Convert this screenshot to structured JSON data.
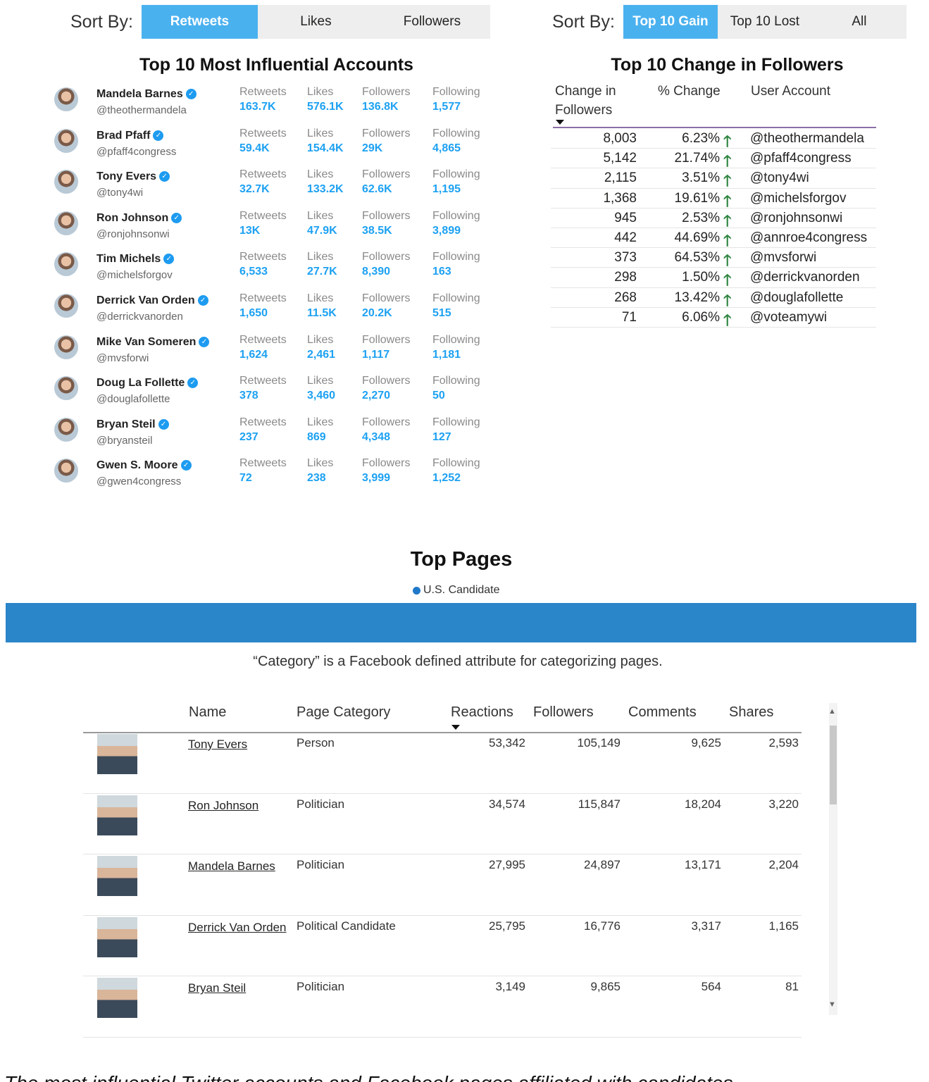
{
  "sort_left": {
    "label": "Sort By:",
    "options": [
      "Retweets",
      "Likes",
      "Followers"
    ],
    "active": 0
  },
  "sort_right": {
    "label": "Sort By:",
    "options": [
      "Top 10 Gain",
      "Top 10 Lost",
      "All"
    ],
    "active": 0
  },
  "influential": {
    "title": "Top 10 Most Influential Accounts",
    "metric_labels": [
      "Retweets",
      "Likes",
      "Followers",
      "Following"
    ],
    "accounts": [
      {
        "name": "Mandela Barnes",
        "handle": "@theothermandela",
        "retweets": "163.7K",
        "likes": "576.1K",
        "followers": "136.8K",
        "following": "1,577"
      },
      {
        "name": "Brad Pfaff",
        "handle": "@pfaff4congress",
        "retweets": "59.4K",
        "likes": "154.4K",
        "followers": "29K",
        "following": "4,865"
      },
      {
        "name": "Tony Evers",
        "handle": "@tony4wi",
        "retweets": "32.7K",
        "likes": "133.2K",
        "followers": "62.6K",
        "following": "1,195"
      },
      {
        "name": "Ron Johnson",
        "handle": "@ronjohnsonwi",
        "retweets": "13K",
        "likes": "47.9K",
        "followers": "38.5K",
        "following": "3,899"
      },
      {
        "name": "Tim Michels",
        "handle": "@michelsforgov",
        "retweets": "6,533",
        "likes": "27.7K",
        "followers": "8,390",
        "following": "163"
      },
      {
        "name": "Derrick Van Orden",
        "handle": "@derrickvanorden",
        "retweets": "1,650",
        "likes": "11.5K",
        "followers": "20.2K",
        "following": "515"
      },
      {
        "name": "Mike Van Someren",
        "handle": "@mvsforwi",
        "retweets": "1,624",
        "likes": "2,461",
        "followers": "1,117",
        "following": "1,181"
      },
      {
        "name": "Doug La Follette",
        "handle": "@douglafollette",
        "retweets": "378",
        "likes": "3,460",
        "followers": "2,270",
        "following": "50"
      },
      {
        "name": "Bryan Steil",
        "handle": "@bryansteil",
        "retweets": "237",
        "likes": "869",
        "followers": "4,348",
        "following": "127"
      },
      {
        "name": "Gwen S. Moore",
        "handle": "@gwen4congress",
        "retweets": "72",
        "likes": "238",
        "followers": "3,999",
        "following": "1,252"
      }
    ]
  },
  "change": {
    "title": "Top 10 Change in Followers",
    "headers": [
      "Change in Followers",
      "% Change",
      "User Account"
    ],
    "rows": [
      {
        "change": "8,003",
        "pct": "6.23%",
        "account": "@theothermandela"
      },
      {
        "change": "5,142",
        "pct": "21.74%",
        "account": "@pfaff4congress"
      },
      {
        "change": "2,115",
        "pct": "3.51%",
        "account": "@tony4wi"
      },
      {
        "change": "1,368",
        "pct": "19.61%",
        "account": "@michelsforgov"
      },
      {
        "change": "945",
        "pct": "2.53%",
        "account": "@ronjohnsonwi"
      },
      {
        "change": "442",
        "pct": "44.69%",
        "account": "@annroe4congress"
      },
      {
        "change": "373",
        "pct": "64.53%",
        "account": "@mvsforwi"
      },
      {
        "change": "298",
        "pct": "1.50%",
        "account": "@derrickvanorden"
      },
      {
        "change": "268",
        "pct": "13.42%",
        "account": "@douglafollette"
      },
      {
        "change": "71",
        "pct": "6.06%",
        "account": "@voteamywi"
      }
    ],
    "arrow_color": "#2e8540"
  },
  "pages": {
    "title": "Top Pages",
    "legend": "U.S. Candidate",
    "legend_color": "#1f78c8",
    "band_color": "#2a85c9",
    "note": "“Category” is a Facebook defined attribute for categorizing pages.",
    "headers": [
      "Name",
      "Page Category",
      "Reactions",
      "Followers",
      "Comments",
      "Shares"
    ],
    "rows": [
      {
        "name": "Tony Evers",
        "category": "Person",
        "reactions": "53,342",
        "followers": "105,149",
        "comments": "9,625",
        "shares": "2,593"
      },
      {
        "name": "Ron Johnson",
        "category": "Politician",
        "reactions": "34,574",
        "followers": "115,847",
        "comments": "18,204",
        "shares": "3,220"
      },
      {
        "name": "Mandela Barnes",
        "category": "Politician",
        "reactions": "27,995",
        "followers": "24,897",
        "comments": "13,171",
        "shares": "2,204"
      },
      {
        "name": "Derrick Van Orden",
        "category": "Political Candidate",
        "reactions": "25,795",
        "followers": "16,776",
        "comments": "3,317",
        "shares": "1,165"
      },
      {
        "name": "Bryan Steil",
        "category": "Politician",
        "reactions": "3,149",
        "followers": "9,865",
        "comments": "564",
        "shares": "81"
      }
    ]
  },
  "accent_color": "#4ab1ef",
  "metric_value_color": "#1da1f2",
  "bottom_caption": "The most influential Twitter accounts and Facebook pages affiliated with candidates"
}
